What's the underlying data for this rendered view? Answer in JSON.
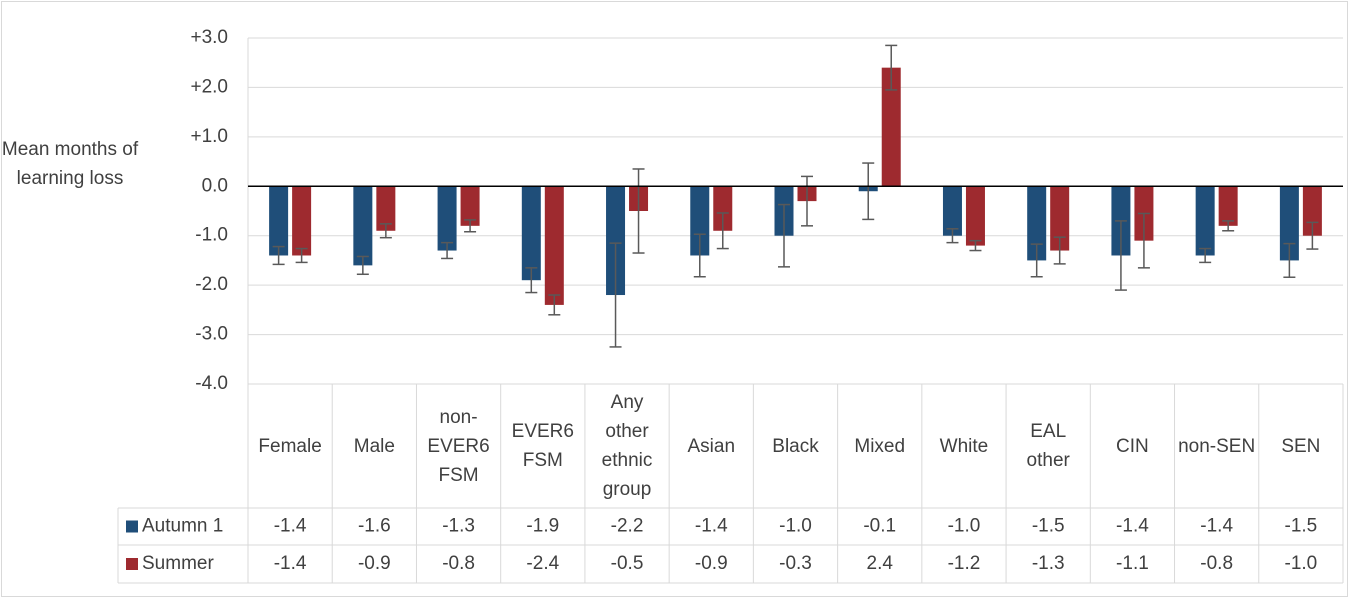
{
  "chart_data": {
    "type": "bar",
    "y_label": "Mean months of learning loss",
    "categories": [
      "Female",
      "Male",
      "non-EVER6 FSM",
      "EVER6 FSM",
      "Any other ethnic group",
      "Asian",
      "Black",
      "Mixed",
      "White",
      "EAL other",
      "CIN",
      "non-SEN",
      "SEN"
    ],
    "series": [
      {
        "name": "Autumn 1",
        "color": "#1f4e79",
        "values": [
          -1.4,
          -1.6,
          -1.3,
          -1.9,
          -2.2,
          -1.4,
          -1.0,
          -0.1,
          -1.0,
          -1.5,
          -1.4,
          -1.4,
          -1.5
        ],
        "value_labels": [
          "-1.4",
          "-1.6",
          "-1.3",
          "-1.9",
          "-2.2",
          "-1.4",
          "-1.0",
          "-0.1",
          "-1.0",
          "-1.5",
          "-1.4",
          "-1.4",
          "-1.5"
        ],
        "errors": [
          0.18,
          0.18,
          0.16,
          0.25,
          1.05,
          0.43,
          0.63,
          0.57,
          0.14,
          0.33,
          0.7,
          0.14,
          0.34
        ]
      },
      {
        "name": "Summer",
        "color": "#9e2a2f",
        "values": [
          -1.4,
          -0.9,
          -0.8,
          -2.4,
          -0.5,
          -0.9,
          -0.3,
          2.4,
          -1.2,
          -1.3,
          -1.1,
          -0.8,
          -1.0
        ],
        "value_labels": [
          "-1.4",
          "-0.9",
          "-0.8",
          "-2.4",
          "-0.5",
          "-0.9",
          "-0.3",
          "2.4",
          "-1.2",
          "-1.3",
          "-1.1",
          "-0.8",
          "-1.0"
        ],
        "errors": [
          0.14,
          0.14,
          0.12,
          0.2,
          0.85,
          0.36,
          0.5,
          0.45,
          0.1,
          0.27,
          0.55,
          0.1,
          0.27
        ]
      }
    ],
    "ylim": [
      -4,
      3
    ],
    "yticks": [
      {
        "value": 3,
        "label": "+3.0"
      },
      {
        "value": 2,
        "label": "+2.0"
      },
      {
        "value": 1,
        "label": "+1.0"
      },
      {
        "value": 0,
        "label": "0.0"
      },
      {
        "value": -1,
        "label": "-1.0"
      },
      {
        "value": -2,
        "label": "-2.0"
      },
      {
        "value": -3,
        "label": "-3.0"
      },
      {
        "value": -4,
        "label": "-4.0"
      }
    ],
    "grid": true
  }
}
